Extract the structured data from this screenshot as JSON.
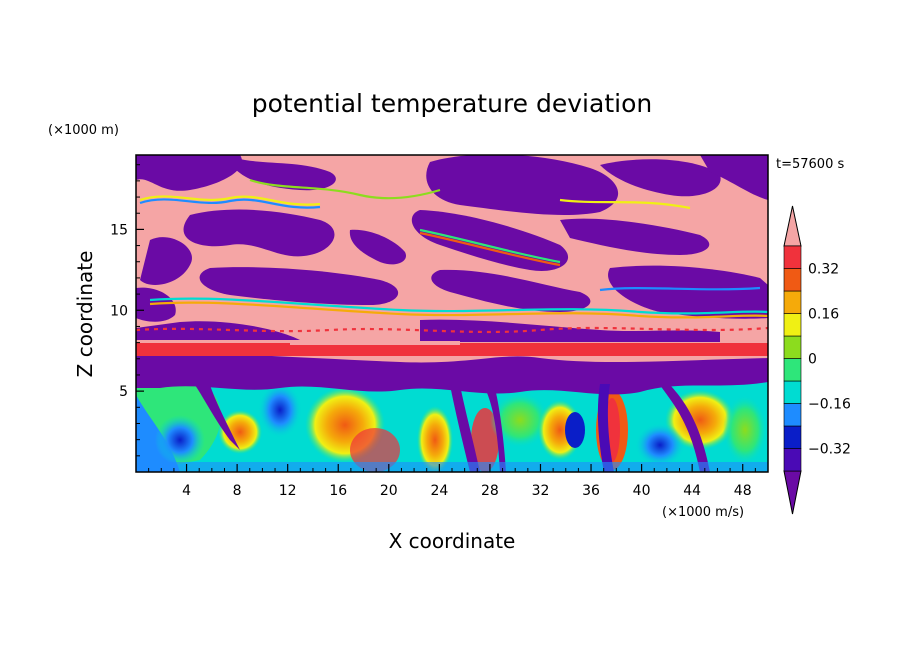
{
  "chart_data": {
    "type": "heatmap",
    "title": "potential temperature deviation",
    "xlabel": "X coordinate",
    "ylabel": "Z coordinate",
    "x_unit": "(×1000 m/s)",
    "y_unit": "(×1000 m)",
    "time_label": "t=57600 s",
    "xlim": [
      0,
      50
    ],
    "ylim": [
      0,
      19.6
    ],
    "x_ticks": [
      4,
      8,
      12,
      16,
      20,
      24,
      28,
      32,
      36,
      40,
      44,
      48
    ],
    "y_ticks": [
      5,
      10,
      15
    ],
    "colorbar": {
      "levels": [
        -0.4,
        -0.32,
        -0.24,
        -0.16,
        -0.08,
        0,
        0.08,
        0.16,
        0.24,
        0.32,
        0.4
      ],
      "tick_values": [
        -0.32,
        -0.16,
        0,
        0.16,
        0.32
      ],
      "tick_labels": [
        "−0.32",
        "−0.16",
        "0",
        "0.16",
        "0.32"
      ],
      "colors": [
        "#6a0aa5",
        "#4a0ab5",
        "#0a1ec8",
        "#1e8cff",
        "#00dcd2",
        "#2ee67a",
        "#8cdc1e",
        "#f0f014",
        "#f5aa0a",
        "#f05a14",
        "#f0323c",
        "#f5a5a5"
      ],
      "extend": "both"
    },
    "regions": {
      "upper_layer": "mostly pink (> 0.4) with large purple (< -0.4) patches between z ≈ 6 and 19.6",
      "stable_band": "red band at z ≈ 8",
      "lower_layer": "turbulent mixed values between -0.4 and 0.4 below z ≈ 6"
    }
  }
}
